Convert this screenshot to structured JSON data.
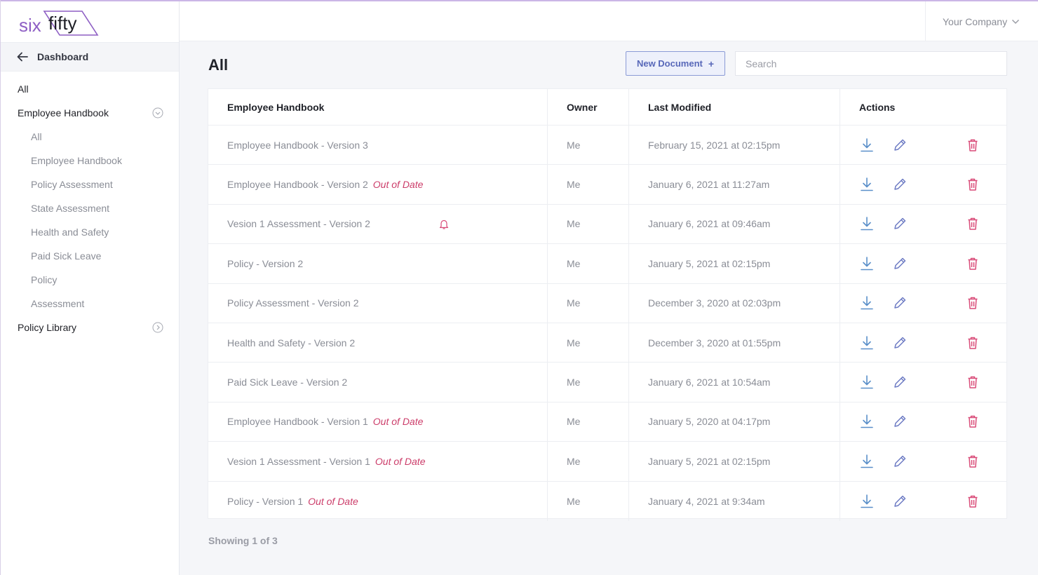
{
  "brand": {
    "logo_text_a": "six",
    "logo_text_b": "fifty",
    "accent": "#8e5fc4"
  },
  "sidebar": {
    "back_label": "Dashboard",
    "items": [
      {
        "label": "All",
        "level": 0
      },
      {
        "label": "Employee Handbook",
        "level": 0,
        "expandable": true
      },
      {
        "label": "All",
        "level": 1
      },
      {
        "label": "Employee Handbook",
        "level": 1
      },
      {
        "label": "Policy Assessment",
        "level": 1
      },
      {
        "label": "State Assessment",
        "level": 1
      },
      {
        "label": "Health and Safety",
        "level": 1
      },
      {
        "label": "Paid Sick Leave",
        "level": 1
      },
      {
        "label": "Policy",
        "level": 1
      },
      {
        "label": "Assessment",
        "level": 1
      },
      {
        "label": "Policy Library",
        "level": 0,
        "expandable": true
      }
    ]
  },
  "topbar": {
    "company": "Your Company"
  },
  "main": {
    "title": "All",
    "new_document_label": "New Document",
    "new_document_icon": "+",
    "search_placeholder": "Search",
    "table": {
      "headers": [
        "Employee Handbook",
        "Owner",
        "Last Modified",
        "Actions"
      ],
      "out_of_date_label": "Out of Date",
      "rows": [
        {
          "name": "Employee Handbook - Version 3",
          "out_of_date": false,
          "owner": "Me",
          "modified": "February 15, 2021 at 02:15pm"
        },
        {
          "name": "Employee Handbook - Version 2",
          "out_of_date": true,
          "owner": "Me",
          "modified": "January 6, 2021 at 11:27am"
        },
        {
          "name": "Vesion 1 Assessment - Version 2",
          "out_of_date": false,
          "notification": true,
          "owner": "Me",
          "modified": "January 6, 2021 at 09:46am"
        },
        {
          "name": "Policy - Version 2",
          "out_of_date": false,
          "owner": "Me",
          "modified": "January 5, 2021 at 02:15pm"
        },
        {
          "name": "Policy Assessment - Version 2",
          "out_of_date": false,
          "owner": "Me",
          "modified": "December 3, 2020 at 02:03pm"
        },
        {
          "name": "Health and Safety - Version 2",
          "out_of_date": false,
          "owner": "Me",
          "modified": "December 3, 2020 at 01:55pm"
        },
        {
          "name": "Paid Sick Leave - Version 2",
          "out_of_date": false,
          "owner": "Me",
          "modified": "January 6, 2021 at 10:54am"
        },
        {
          "name": "Employee Handbook - Version 1",
          "out_of_date": true,
          "owner": "Me",
          "modified": "January 5, 2020 at 04:17pm"
        },
        {
          "name": "Vesion 1 Assessment - Version 1",
          "out_of_date": true,
          "owner": "Me",
          "modified": "January 5, 2021 at 02:15pm"
        },
        {
          "name": "Policy - Version 1",
          "out_of_date": true,
          "owner": "Me",
          "modified": "January 4, 2021 at 9:34am"
        }
      ],
      "action_icons": [
        "download-icon",
        "edit-pencil-icon",
        "trash-icon"
      ],
      "colors": {
        "download": "#5a8fc9",
        "edit": "#6d7bc4",
        "trash": "#d94b78",
        "out_of_date": "#cc3d6a"
      }
    },
    "pagination": "Showing 1 of 3"
  }
}
